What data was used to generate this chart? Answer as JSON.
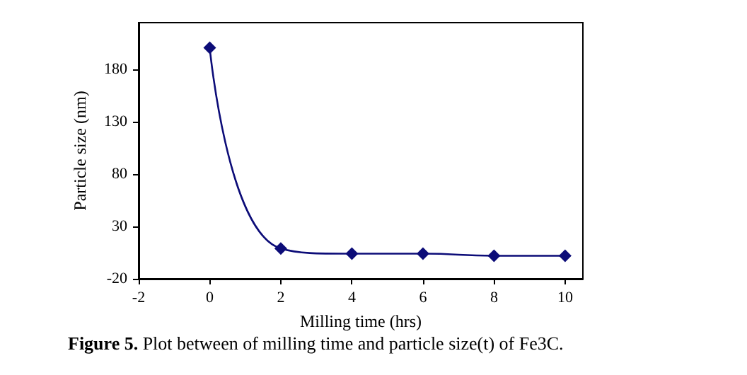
{
  "chart_data": {
    "type": "line",
    "xlabel": "Milling time (hrs)",
    "ylabel": "Particle size (nm)",
    "x": [
      0,
      2,
      4,
      6,
      8,
      10
    ],
    "series": [
      {
        "color": "#0c0c78",
        "values": [
          201,
          9,
          4,
          4,
          2,
          2
        ]
      }
    ],
    "xlim": [
      -2,
      10.5
    ],
    "xticks": [
      -2,
      0,
      2,
      4,
      6,
      8,
      10
    ],
    "ylim": [
      -20,
      225
    ],
    "yticks": [
      -20,
      30,
      80,
      130,
      180
    ],
    "grid": false,
    "marker": "diamond",
    "line_style": "solid",
    "annotations": [
      "Figure 5. Plot between of milling time and particle size(t) of Fe3C."
    ]
  }
}
